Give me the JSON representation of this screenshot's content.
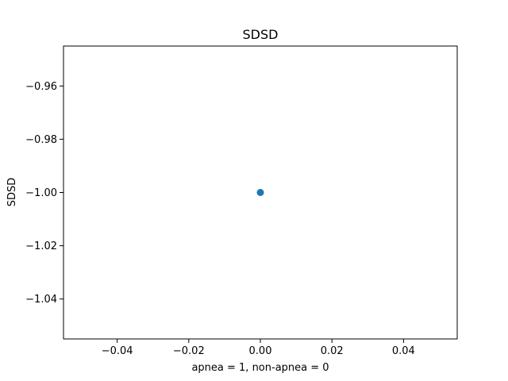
{
  "chart_data": {
    "type": "scatter",
    "title": "SDSD",
    "xlabel": "apnea = 1, non-apnea = 0",
    "ylabel": "SDSD",
    "xlim": [
      -0.055,
      0.055
    ],
    "ylim": [
      -1.055,
      -0.945
    ],
    "x_ticks": [
      -0.04,
      -0.02,
      0.0,
      0.02,
      0.04
    ],
    "x_tick_labels": [
      "−0.04",
      "−0.02",
      "0.00",
      "0.02",
      "0.04"
    ],
    "y_ticks": [
      -0.96,
      -0.98,
      -1.0,
      -1.02,
      -1.04
    ],
    "y_tick_labels": [
      "−0.96",
      "−0.98",
      "−1.00",
      "−1.02",
      "−1.04"
    ],
    "grid": false,
    "series": [
      {
        "points": [
          {
            "x": 0.0,
            "y": -1.0
          }
        ],
        "color": "#1f77b4"
      }
    ]
  }
}
